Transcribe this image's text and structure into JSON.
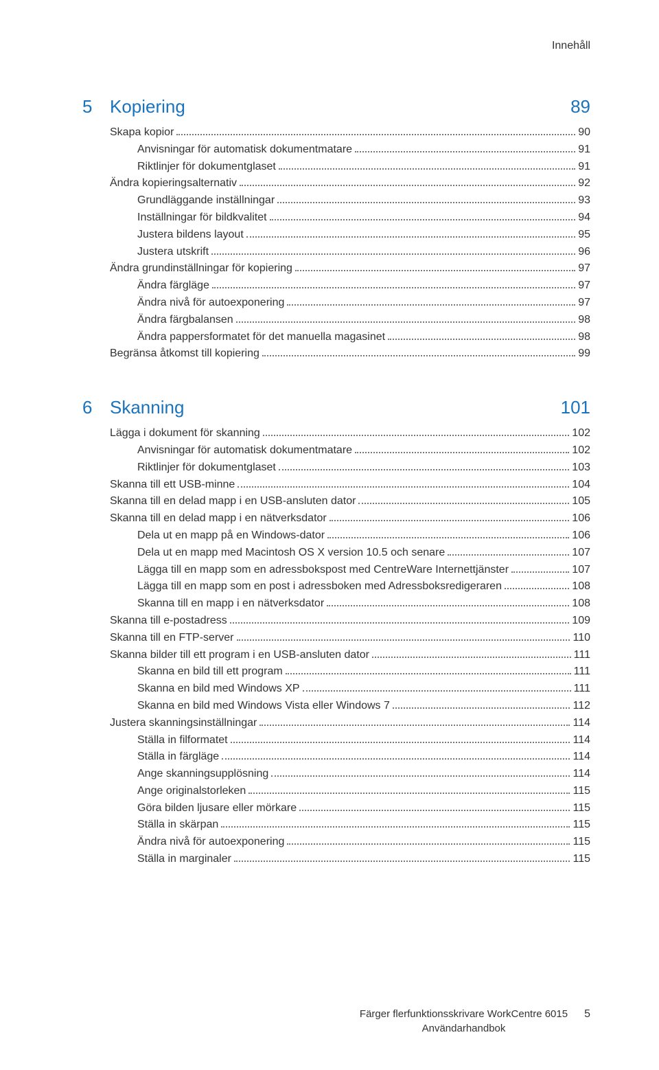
{
  "header": {
    "title": "Innehåll"
  },
  "chapters": [
    {
      "num": "5",
      "title": "Kopiering",
      "page": "89",
      "entries": [
        {
          "label": "Skapa kopior",
          "page": "90",
          "indent": 0
        },
        {
          "label": "Anvisningar för automatisk dokumentmatare",
          "page": "91",
          "indent": 1
        },
        {
          "label": "Riktlinjer för dokumentglaset",
          "page": "91",
          "indent": 1
        },
        {
          "label": "Ändra kopieringsalternativ",
          "page": "92",
          "indent": 0
        },
        {
          "label": "Grundläggande inställningar",
          "page": "93",
          "indent": 1
        },
        {
          "label": "Inställningar för bildkvalitet",
          "page": "94",
          "indent": 1
        },
        {
          "label": "Justera bildens layout",
          "page": "95",
          "indent": 1
        },
        {
          "label": "Justera utskrift",
          "page": "96",
          "indent": 1
        },
        {
          "label": "Ändra grundinställningar för kopiering",
          "page": "97",
          "indent": 0
        },
        {
          "label": "Ändra färgläge",
          "page": "97",
          "indent": 1
        },
        {
          "label": "Ändra nivå för autoexponering",
          "page": "97",
          "indent": 1
        },
        {
          "label": "Ändra färgbalansen",
          "page": "98",
          "indent": 1
        },
        {
          "label": "Ändra pappersformatet för det manuella magasinet",
          "page": "98",
          "indent": 1
        },
        {
          "label": "Begränsa åtkomst till kopiering",
          "page": "99",
          "indent": 0
        }
      ]
    },
    {
      "num": "6",
      "title": "Skanning",
      "page": "101",
      "entries": [
        {
          "label": "Lägga i dokument för skanning",
          "page": "102",
          "indent": 0
        },
        {
          "label": "Anvisningar för automatisk dokumentmatare",
          "page": "102",
          "indent": 1
        },
        {
          "label": "Riktlinjer för dokumentglaset",
          "page": "103",
          "indent": 1
        },
        {
          "label": "Skanna till ett USB-minne",
          "page": "104",
          "indent": 0
        },
        {
          "label": "Skanna till en delad mapp i en USB-ansluten dator",
          "page": "105",
          "indent": 0
        },
        {
          "label": "Skanna till en delad mapp i en nätverksdator",
          "page": "106",
          "indent": 0
        },
        {
          "label": "Dela ut en mapp på en Windows-dator",
          "page": "106",
          "indent": 1
        },
        {
          "label": "Dela ut en mapp med Macintosh OS X version 10.5 och senare",
          "page": "107",
          "indent": 1
        },
        {
          "label": "Lägga till en mapp som en adressbokspost med CentreWare Internettjänster",
          "page": "107",
          "indent": 1
        },
        {
          "label": "Lägga till en mapp som en post i adressboken med Adressboksredigeraren",
          "page": "108",
          "indent": 1
        },
        {
          "label": "Skanna till en mapp i en nätverksdator",
          "page": "108",
          "indent": 1
        },
        {
          "label": "Skanna till e-postadress",
          "page": "109",
          "indent": 0
        },
        {
          "label": "Skanna till en FTP-server",
          "page": "110",
          "indent": 0
        },
        {
          "label": "Skanna bilder till ett program i en USB-ansluten dator",
          "page": "111",
          "indent": 0
        },
        {
          "label": "Skanna en bild till ett program",
          "page": "111",
          "indent": 1
        },
        {
          "label": "Skanna en bild med Windows XP",
          "page": "111",
          "indent": 1
        },
        {
          "label": "Skanna en bild med Windows Vista eller Windows 7",
          "page": "112",
          "indent": 1
        },
        {
          "label": "Justera skanningsinställningar",
          "page": "114",
          "indent": 0
        },
        {
          "label": "Ställa in filformatet",
          "page": "114",
          "indent": 1
        },
        {
          "label": "Ställa in färgläge",
          "page": "114",
          "indent": 1
        },
        {
          "label": "Ange skanningsupplösning",
          "page": "114",
          "indent": 1
        },
        {
          "label": "Ange originalstorleken",
          "page": "115",
          "indent": 1
        },
        {
          "label": "Göra bilden ljusare eller mörkare",
          "page": "115",
          "indent": 1
        },
        {
          "label": "Ställa in skärpan",
          "page": "115",
          "indent": 1
        },
        {
          "label": "Ändra nivå för autoexponering",
          "page": "115",
          "indent": 1
        },
        {
          "label": "Ställa in marginaler",
          "page": "115",
          "indent": 1
        }
      ]
    }
  ],
  "footer": {
    "line1": "Färger flerfunktionsskrivare WorkCentre 6015",
    "line2": "Användarhandbok",
    "page": "5"
  },
  "colors": {
    "accent": "#1b74bb",
    "text": "#333333",
    "background": "#ffffff",
    "dots": "#777777"
  }
}
